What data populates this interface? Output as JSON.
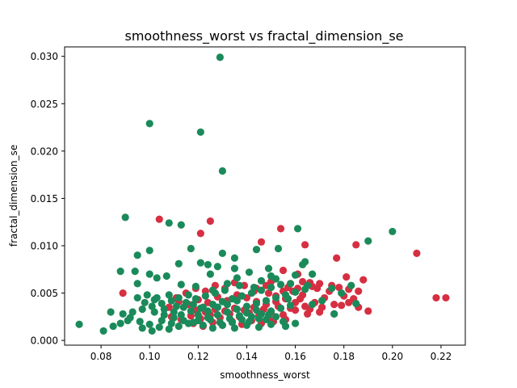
{
  "chart_data": {
    "type": "scatter",
    "title": "smoothness_worst vs fractal_dimension_se",
    "xlabel": "smoothness_worst",
    "ylabel": "fractal_dimension_se",
    "xlim": [
      0.065,
      0.23
    ],
    "ylim": [
      -0.0005,
      0.031
    ],
    "xticks": [
      0.08,
      0.1,
      0.12,
      0.14,
      0.16,
      0.18,
      0.2,
      0.22
    ],
    "xtick_labels": [
      "0.08",
      "0.10",
      "0.12",
      "0.14",
      "0.16",
      "0.18",
      "0.20",
      "0.22"
    ],
    "yticks": [
      0.0,
      0.005,
      0.01,
      0.015,
      0.02,
      0.025,
      0.03
    ],
    "ytick_labels": [
      "0.000",
      "0.005",
      "0.010",
      "0.015",
      "0.020",
      "0.025",
      "0.030"
    ],
    "grid": false,
    "legend": "none",
    "series": [
      {
        "color": "#d62f42",
        "points": [
          [
            0.104,
            0.0128
          ],
          [
            0.125,
            0.0126
          ],
          [
            0.121,
            0.0113
          ],
          [
            0.154,
            0.0118
          ],
          [
            0.146,
            0.0104
          ],
          [
            0.164,
            0.0101
          ],
          [
            0.185,
            0.0101
          ],
          [
            0.21,
            0.0092
          ],
          [
            0.177,
            0.0087
          ],
          [
            0.155,
            0.0074
          ],
          [
            0.161,
            0.007
          ],
          [
            0.181,
            0.0067
          ],
          [
            0.188,
            0.0064
          ],
          [
            0.15,
            0.0062
          ],
          [
            0.158,
            0.006
          ],
          [
            0.163,
            0.0062
          ],
          [
            0.166,
            0.0061
          ],
          [
            0.17,
            0.006
          ],
          [
            0.175,
            0.0058
          ],
          [
            0.178,
            0.0056
          ],
          [
            0.182,
            0.0054
          ],
          [
            0.186,
            0.0052
          ],
          [
            0.167,
            0.0057
          ],
          [
            0.161,
            0.0055
          ],
          [
            0.155,
            0.0052
          ],
          [
            0.149,
            0.005
          ],
          [
            0.144,
            0.0055
          ],
          [
            0.139,
            0.0058
          ],
          [
            0.135,
            0.0061
          ],
          [
            0.131,
            0.0055
          ],
          [
            0.127,
            0.0058
          ],
          [
            0.123,
            0.0052
          ],
          [
            0.119,
            0.0055
          ],
          [
            0.115,
            0.005
          ],
          [
            0.111,
            0.0045
          ],
          [
            0.089,
            0.005
          ],
          [
            0.218,
            0.0045
          ],
          [
            0.222,
            0.0045
          ],
          [
            0.19,
            0.0031
          ],
          [
            0.186,
            0.0035
          ],
          [
            0.182,
            0.004
          ],
          [
            0.176,
            0.0038
          ],
          [
            0.172,
            0.0045
          ],
          [
            0.168,
            0.004
          ],
          [
            0.164,
            0.0036
          ],
          [
            0.16,
            0.004
          ],
          [
            0.156,
            0.0044
          ],
          [
            0.152,
            0.0041
          ],
          [
            0.148,
            0.0038
          ],
          [
            0.144,
            0.0041
          ],
          [
            0.14,
            0.0045
          ],
          [
            0.136,
            0.0048
          ],
          [
            0.132,
            0.0042
          ],
          [
            0.128,
            0.0046
          ],
          [
            0.124,
            0.004
          ],
          [
            0.12,
            0.0043
          ],
          [
            0.116,
            0.0038
          ],
          [
            0.112,
            0.0041
          ],
          [
            0.108,
            0.0035
          ],
          [
            0.17,
            0.003
          ],
          [
            0.165,
            0.0028
          ],
          [
            0.16,
            0.0032
          ],
          [
            0.155,
            0.0027
          ],
          [
            0.15,
            0.003
          ],
          [
            0.145,
            0.0026
          ],
          [
            0.141,
            0.0029
          ],
          [
            0.137,
            0.0025
          ],
          [
            0.133,
            0.0028
          ],
          [
            0.129,
            0.0024
          ],
          [
            0.125,
            0.0027
          ],
          [
            0.121,
            0.0023
          ],
          [
            0.117,
            0.0026
          ],
          [
            0.113,
            0.0022
          ],
          [
            0.109,
            0.0025
          ],
          [
            0.156,
            0.0022
          ],
          [
            0.151,
            0.002
          ],
          [
            0.146,
            0.0018
          ],
          [
            0.142,
            0.0021
          ],
          [
            0.138,
            0.0017
          ],
          [
            0.134,
            0.002
          ],
          [
            0.13,
            0.0016
          ],
          [
            0.126,
            0.0019
          ],
          [
            0.122,
            0.0015
          ],
          [
            0.118,
            0.0018
          ],
          [
            0.158,
            0.0034
          ],
          [
            0.153,
            0.0036
          ],
          [
            0.147,
            0.0033
          ],
          [
            0.143,
            0.0035
          ],
          [
            0.139,
            0.0032
          ],
          [
            0.135,
            0.0034
          ],
          [
            0.131,
            0.0031
          ],
          [
            0.127,
            0.0033
          ],
          [
            0.123,
            0.003
          ],
          [
            0.119,
            0.0032
          ],
          [
            0.174,
            0.0052
          ],
          [
            0.18,
            0.0047
          ],
          [
            0.169,
            0.0055
          ],
          [
            0.163,
            0.0048
          ],
          [
            0.159,
            0.0052
          ],
          [
            0.166,
            0.0033
          ],
          [
            0.179,
            0.0037
          ],
          [
            0.184,
            0.0044
          ],
          [
            0.148,
            0.0058
          ],
          [
            0.152,
            0.0047
          ],
          [
            0.157,
            0.0056
          ],
          [
            0.162,
            0.0044
          ],
          [
            0.171,
            0.0035
          ],
          [
            0.176,
            0.0028
          ],
          [
            0.149,
            0.0024
          ],
          [
            0.143,
            0.0052
          ]
        ]
      },
      {
        "color": "#1b8a5a",
        "points": [
          [
            0.129,
            0.0299
          ],
          [
            0.1,
            0.0229
          ],
          [
            0.121,
            0.022
          ],
          [
            0.13,
            0.0179
          ],
          [
            0.09,
            0.013
          ],
          [
            0.108,
            0.0124
          ],
          [
            0.113,
            0.0122
          ],
          [
            0.2,
            0.0115
          ],
          [
            0.161,
            0.0118
          ],
          [
            0.19,
            0.0105
          ],
          [
            0.1,
            0.0095
          ],
          [
            0.117,
            0.0097
          ],
          [
            0.144,
            0.0096
          ],
          [
            0.153,
            0.0097
          ],
          [
            0.13,
            0.0092
          ],
          [
            0.135,
            0.0087
          ],
          [
            0.095,
            0.009
          ],
          [
            0.1,
            0.007
          ],
          [
            0.088,
            0.0073
          ],
          [
            0.094,
            0.0073
          ],
          [
            0.112,
            0.0081
          ],
          [
            0.121,
            0.0082
          ],
          [
            0.124,
            0.008
          ],
          [
            0.128,
            0.0078
          ],
          [
            0.135,
            0.0076
          ],
          [
            0.149,
            0.0076
          ],
          [
            0.164,
            0.0083
          ],
          [
            0.163,
            0.008
          ],
          [
            0.141,
            0.0072
          ],
          [
            0.125,
            0.007
          ],
          [
            0.136,
            0.0066
          ],
          [
            0.15,
            0.0068
          ],
          [
            0.16,
            0.0069
          ],
          [
            0.167,
            0.007
          ],
          [
            0.103,
            0.0066
          ],
          [
            0.107,
            0.0068
          ],
          [
            0.095,
            0.006
          ],
          [
            0.113,
            0.0059
          ],
          [
            0.119,
            0.0057
          ],
          [
            0.126,
            0.0053
          ],
          [
            0.132,
            0.006
          ],
          [
            0.137,
            0.0058
          ],
          [
            0.143,
            0.0056
          ],
          [
            0.146,
            0.0063
          ],
          [
            0.152,
            0.0065
          ],
          [
            0.158,
            0.006
          ],
          [
            0.165,
            0.0058
          ],
          [
            0.175,
            0.0055
          ],
          [
            0.183,
            0.0058
          ],
          [
            0.185,
            0.0039
          ],
          [
            0.176,
            0.0028
          ],
          [
            0.16,
            0.0018
          ],
          [
            0.071,
            0.0017
          ],
          [
            0.081,
            0.001
          ],
          [
            0.085,
            0.0015
          ],
          [
            0.088,
            0.0018
          ],
          [
            0.091,
            0.0021
          ],
          [
            0.084,
            0.003
          ],
          [
            0.089,
            0.0028
          ],
          [
            0.093,
            0.003
          ],
          [
            0.097,
            0.0033
          ],
          [
            0.101,
            0.0036
          ],
          [
            0.105,
            0.0039
          ],
          [
            0.109,
            0.0042
          ],
          [
            0.095,
            0.0045
          ],
          [
            0.099,
            0.0048
          ],
          [
            0.103,
            0.0045
          ],
          [
            0.108,
            0.0048
          ],
          [
            0.112,
            0.0045
          ],
          [
            0.116,
            0.0048
          ],
          [
            0.092,
            0.0024
          ],
          [
            0.096,
            0.002
          ],
          [
            0.1,
            0.0017
          ],
          [
            0.104,
            0.0014
          ],
          [
            0.108,
            0.0012
          ],
          [
            0.112,
            0.0015
          ],
          [
            0.116,
            0.0018
          ],
          [
            0.12,
            0.0021
          ],
          [
            0.124,
            0.0024
          ],
          [
            0.128,
            0.0027
          ],
          [
            0.132,
            0.003
          ],
          [
            0.136,
            0.0033
          ],
          [
            0.14,
            0.0036
          ],
          [
            0.144,
            0.0039
          ],
          [
            0.148,
            0.0042
          ],
          [
            0.152,
            0.0045
          ],
          [
            0.156,
            0.0048
          ],
          [
            0.16,
            0.0051
          ],
          [
            0.164,
            0.0054
          ],
          [
            0.102,
            0.003
          ],
          [
            0.106,
            0.0027
          ],
          [
            0.11,
            0.0024
          ],
          [
            0.114,
            0.0021
          ],
          [
            0.118,
            0.0019
          ],
          [
            0.122,
            0.0016
          ],
          [
            0.126,
            0.0013
          ],
          [
            0.13,
            0.0016
          ],
          [
            0.134,
            0.0019
          ],
          [
            0.138,
            0.0022
          ],
          [
            0.142,
            0.0025
          ],
          [
            0.146,
            0.0028
          ],
          [
            0.15,
            0.0031
          ],
          [
            0.154,
            0.0034
          ],
          [
            0.158,
            0.0037
          ],
          [
            0.098,
            0.004
          ],
          [
            0.102,
            0.0043
          ],
          [
            0.106,
            0.0033
          ],
          [
            0.11,
            0.003
          ],
          [
            0.114,
            0.0035
          ],
          [
            0.118,
            0.0038
          ],
          [
            0.122,
            0.0035
          ],
          [
            0.126,
            0.0038
          ],
          [
            0.13,
            0.0041
          ],
          [
            0.134,
            0.0044
          ],
          [
            0.138,
            0.0047
          ],
          [
            0.142,
            0.005
          ],
          [
            0.146,
            0.0053
          ],
          [
            0.15,
            0.0056
          ],
          [
            0.154,
            0.0059
          ],
          [
            0.14,
            0.0016
          ],
          [
            0.145,
            0.0014
          ],
          [
            0.15,
            0.0017
          ],
          [
            0.155,
            0.002
          ],
          [
            0.135,
            0.0013
          ],
          [
            0.12,
            0.0027
          ],
          [
            0.124,
            0.0031
          ],
          [
            0.128,
            0.0035
          ],
          [
            0.132,
            0.0038
          ],
          [
            0.136,
            0.0042
          ],
          [
            0.14,
            0.0029
          ],
          [
            0.144,
            0.0032
          ],
          [
            0.148,
            0.0022
          ],
          [
            0.152,
            0.0025
          ],
          [
            0.156,
            0.0015
          ],
          [
            0.113,
            0.0027
          ],
          [
            0.117,
            0.0031
          ],
          [
            0.121,
            0.0034
          ],
          [
            0.125,
            0.0022
          ],
          [
            0.129,
            0.0019
          ],
          [
            0.133,
            0.0023
          ],
          [
            0.137,
            0.0026
          ],
          [
            0.141,
            0.002
          ],
          [
            0.145,
            0.0023
          ],
          [
            0.149,
            0.0027
          ],
          [
            0.111,
            0.0036
          ],
          [
            0.115,
            0.004
          ],
          [
            0.119,
            0.0044
          ],
          [
            0.123,
            0.0047
          ],
          [
            0.127,
            0.005
          ],
          [
            0.131,
            0.0053
          ],
          [
            0.097,
            0.0013
          ],
          [
            0.101,
            0.001
          ],
          [
            0.105,
            0.0021
          ],
          [
            0.109,
            0.0018
          ],
          [
            0.167,
            0.0038
          ],
          [
            0.171,
            0.0042
          ],
          [
            0.179,
            0.005
          ],
          [
            0.157,
            0.0044
          ]
        ]
      }
    ]
  }
}
